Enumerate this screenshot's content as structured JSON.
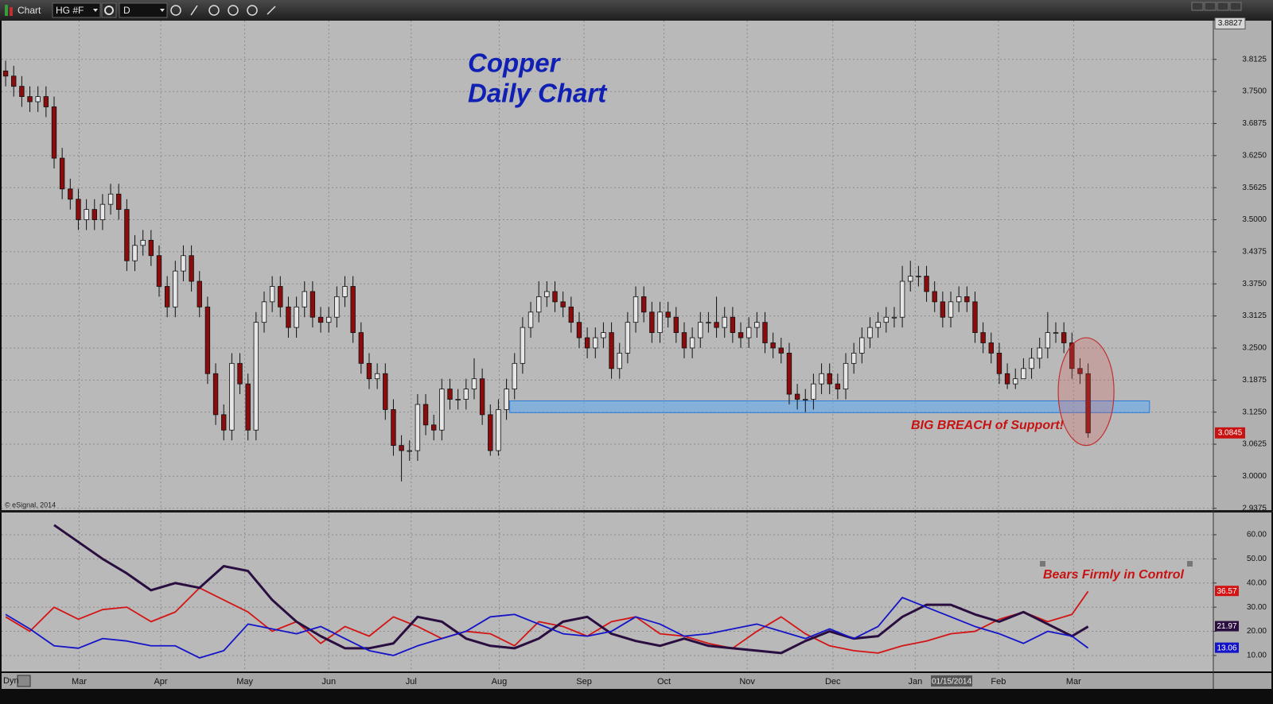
{
  "toolbar": {
    "app_label": "Chart",
    "symbol": "HG #F",
    "interval": "D"
  },
  "footer": {
    "mode": "Dyn"
  },
  "chart_data": [
    {
      "type": "candlestick",
      "title_lines": [
        "Copper",
        "Daily Chart"
      ],
      "annotations": [
        "BIG BREACH of Support!",
        "© eSignal, 2014"
      ],
      "ohlc": [
        [
          3.79,
          3.81,
          3.76,
          3.78
        ],
        [
          3.78,
          3.8,
          3.74,
          3.76
        ],
        [
          3.76,
          3.78,
          3.72,
          3.74
        ],
        [
          3.74,
          3.76,
          3.71,
          3.73
        ],
        [
          3.73,
          3.76,
          3.71,
          3.74
        ],
        [
          3.74,
          3.76,
          3.7,
          3.72
        ],
        [
          3.72,
          3.74,
          3.6,
          3.62
        ],
        [
          3.62,
          3.64,
          3.54,
          3.56
        ],
        [
          3.56,
          3.58,
          3.52,
          3.54
        ],
        [
          3.54,
          3.56,
          3.48,
          3.5
        ],
        [
          3.5,
          3.54,
          3.48,
          3.52
        ],
        [
          3.52,
          3.54,
          3.48,
          3.5
        ],
        [
          3.5,
          3.55,
          3.48,
          3.53
        ],
        [
          3.53,
          3.57,
          3.51,
          3.55
        ],
        [
          3.55,
          3.57,
          3.5,
          3.52
        ],
        [
          3.52,
          3.54,
          3.4,
          3.42
        ],
        [
          3.42,
          3.47,
          3.4,
          3.45
        ],
        [
          3.45,
          3.48,
          3.43,
          3.46
        ],
        [
          3.46,
          3.48,
          3.41,
          3.43
        ],
        [
          3.43,
          3.45,
          3.35,
          3.37
        ],
        [
          3.37,
          3.39,
          3.31,
          3.33
        ],
        [
          3.33,
          3.42,
          3.31,
          3.4
        ],
        [
          3.4,
          3.45,
          3.38,
          3.43
        ],
        [
          3.43,
          3.45,
          3.36,
          3.38
        ],
        [
          3.38,
          3.4,
          3.31,
          3.33
        ],
        [
          3.33,
          3.35,
          3.18,
          3.2
        ],
        [
          3.2,
          3.22,
          3.1,
          3.12
        ],
        [
          3.12,
          3.14,
          3.07,
          3.09
        ],
        [
          3.09,
          3.24,
          3.07,
          3.22
        ],
        [
          3.22,
          3.24,
          3.16,
          3.18
        ],
        [
          3.18,
          3.2,
          3.07,
          3.09
        ],
        [
          3.09,
          3.32,
          3.07,
          3.3
        ],
        [
          3.3,
          3.36,
          3.28,
          3.34
        ],
        [
          3.34,
          3.39,
          3.32,
          3.37
        ],
        [
          3.37,
          3.39,
          3.31,
          3.33
        ],
        [
          3.33,
          3.35,
          3.27,
          3.29
        ],
        [
          3.29,
          3.35,
          3.27,
          3.33
        ],
        [
          3.33,
          3.38,
          3.31,
          3.36
        ],
        [
          3.36,
          3.38,
          3.29,
          3.31
        ],
        [
          3.31,
          3.33,
          3.28,
          3.3
        ],
        [
          3.3,
          3.33,
          3.28,
          3.31
        ],
        [
          3.31,
          3.37,
          3.29,
          3.35
        ],
        [
          3.35,
          3.39,
          3.33,
          3.37
        ],
        [
          3.37,
          3.39,
          3.26,
          3.28
        ],
        [
          3.28,
          3.3,
          3.2,
          3.22
        ],
        [
          3.22,
          3.24,
          3.17,
          3.19
        ],
        [
          3.19,
          3.22,
          3.17,
          3.2
        ],
        [
          3.2,
          3.22,
          3.11,
          3.13
        ],
        [
          3.13,
          3.15,
          3.04,
          3.06
        ],
        [
          3.06,
          3.08,
          2.99,
          3.05
        ],
        [
          3.05,
          3.07,
          3.03,
          3.05
        ],
        [
          3.05,
          3.16,
          3.03,
          3.14
        ],
        [
          3.14,
          3.16,
          3.08,
          3.1
        ],
        [
          3.1,
          3.12,
          3.07,
          3.09
        ],
        [
          3.09,
          3.19,
          3.07,
          3.17
        ],
        [
          3.17,
          3.19,
          3.13,
          3.15
        ],
        [
          3.15,
          3.17,
          3.13,
          3.15
        ],
        [
          3.15,
          3.19,
          3.13,
          3.17
        ],
        [
          3.17,
          3.23,
          3.15,
          3.19
        ],
        [
          3.19,
          3.21,
          3.1,
          3.12
        ],
        [
          3.12,
          3.14,
          3.04,
          3.05
        ],
        [
          3.05,
          3.15,
          3.04,
          3.13
        ],
        [
          3.13,
          3.19,
          3.11,
          3.17
        ],
        [
          3.17,
          3.24,
          3.15,
          3.22
        ],
        [
          3.22,
          3.31,
          3.2,
          3.29
        ],
        [
          3.29,
          3.34,
          3.27,
          3.32
        ],
        [
          3.32,
          3.38,
          3.3,
          3.35
        ],
        [
          3.35,
          3.38,
          3.33,
          3.36
        ],
        [
          3.36,
          3.38,
          3.32,
          3.34
        ],
        [
          3.34,
          3.36,
          3.31,
          3.33
        ],
        [
          3.33,
          3.35,
          3.28,
          3.3
        ],
        [
          3.3,
          3.32,
          3.25,
          3.27
        ],
        [
          3.27,
          3.29,
          3.23,
          3.25
        ],
        [
          3.25,
          3.29,
          3.23,
          3.27
        ],
        [
          3.27,
          3.3,
          3.25,
          3.28
        ],
        [
          3.28,
          3.3,
          3.19,
          3.21
        ],
        [
          3.21,
          3.26,
          3.19,
          3.24
        ],
        [
          3.24,
          3.32,
          3.22,
          3.3
        ],
        [
          3.3,
          3.37,
          3.28,
          3.35
        ],
        [
          3.35,
          3.37,
          3.3,
          3.32
        ],
        [
          3.32,
          3.34,
          3.26,
          3.28
        ],
        [
          3.28,
          3.34,
          3.26,
          3.32
        ],
        [
          3.32,
          3.34,
          3.29,
          3.31
        ],
        [
          3.31,
          3.33,
          3.26,
          3.28
        ],
        [
          3.28,
          3.3,
          3.23,
          3.25
        ],
        [
          3.25,
          3.29,
          3.23,
          3.27
        ],
        [
          3.27,
          3.32,
          3.25,
          3.3
        ],
        [
          3.3,
          3.32,
          3.28,
          3.3
        ],
        [
          3.3,
          3.35,
          3.27,
          3.29
        ],
        [
          3.29,
          3.33,
          3.27,
          3.31
        ],
        [
          3.31,
          3.33,
          3.26,
          3.28
        ],
        [
          3.28,
          3.3,
          3.25,
          3.27
        ],
        [
          3.27,
          3.31,
          3.25,
          3.29
        ],
        [
          3.29,
          3.32,
          3.27,
          3.3
        ],
        [
          3.3,
          3.32,
          3.24,
          3.26
        ],
        [
          3.26,
          3.28,
          3.23,
          3.25
        ],
        [
          3.25,
          3.27,
          3.22,
          3.24
        ],
        [
          3.24,
          3.26,
          3.14,
          3.16
        ],
        [
          3.16,
          3.18,
          3.13,
          3.15
        ],
        [
          3.15,
          3.17,
          3.125,
          3.15
        ],
        [
          3.15,
          3.2,
          3.13,
          3.18
        ],
        [
          3.18,
          3.22,
          3.16,
          3.2
        ],
        [
          3.2,
          3.22,
          3.16,
          3.18
        ],
        [
          3.18,
          3.2,
          3.15,
          3.17
        ],
        [
          3.17,
          3.24,
          3.15,
          3.22
        ],
        [
          3.22,
          3.26,
          3.2,
          3.24
        ],
        [
          3.24,
          3.29,
          3.22,
          3.27
        ],
        [
          3.27,
          3.31,
          3.25,
          3.29
        ],
        [
          3.29,
          3.32,
          3.27,
          3.3
        ],
        [
          3.3,
          3.33,
          3.28,
          3.31
        ],
        [
          3.31,
          3.33,
          3.29,
          3.31
        ],
        [
          3.31,
          3.41,
          3.29,
          3.38
        ],
        [
          3.38,
          3.42,
          3.36,
          3.39
        ],
        [
          3.39,
          3.41,
          3.37,
          3.39
        ],
        [
          3.39,
          3.41,
          3.34,
          3.36
        ],
        [
          3.36,
          3.38,
          3.32,
          3.34
        ],
        [
          3.34,
          3.36,
          3.29,
          3.31
        ],
        [
          3.31,
          3.36,
          3.29,
          3.34
        ],
        [
          3.34,
          3.37,
          3.32,
          3.35
        ],
        [
          3.35,
          3.37,
          3.32,
          3.34
        ],
        [
          3.34,
          3.36,
          3.26,
          3.28
        ],
        [
          3.28,
          3.3,
          3.24,
          3.26
        ],
        [
          3.26,
          3.28,
          3.22,
          3.24
        ],
        [
          3.24,
          3.26,
          3.18,
          3.2
        ],
        [
          3.2,
          3.22,
          3.17,
          3.18
        ],
        [
          3.18,
          3.21,
          3.17,
          3.19
        ],
        [
          3.19,
          3.23,
          3.19,
          3.21
        ],
        [
          3.21,
          3.25,
          3.19,
          3.23
        ],
        [
          3.23,
          3.27,
          3.21,
          3.25
        ],
        [
          3.25,
          3.32,
          3.23,
          3.28
        ],
        [
          3.28,
          3.3,
          3.26,
          3.28
        ],
        [
          3.28,
          3.3,
          3.24,
          3.26
        ],
        [
          3.26,
          3.28,
          3.19,
          3.21
        ],
        [
          3.21,
          3.23,
          3.18,
          3.2
        ],
        [
          3.2,
          3.22,
          3.075,
          3.0845
        ]
      ],
      "up_color": "#e6e6e6",
      "down_color": "#8a0c0c",
      "xlim": [
        -0.5,
        149.5
      ],
      "xticks": [
        {
          "value": 9.1,
          "label": "Mar"
        },
        {
          "value": 19.2,
          "label": "Apr"
        },
        {
          "value": 29.6,
          "label": "May"
        },
        {
          "value": 40.0,
          "label": "Jun"
        },
        {
          "value": 50.2,
          "label": "Jul"
        },
        {
          "value": 61.1,
          "label": "Aug"
        },
        {
          "value": 71.6,
          "label": "Sep"
        },
        {
          "value": 81.5,
          "label": "Oct"
        },
        {
          "value": 91.8,
          "label": "Nov"
        },
        {
          "value": 102.4,
          "label": "Dec"
        },
        {
          "value": 112.6,
          "label": "Jan"
        },
        {
          "value": 122.9,
          "label": "Feb"
        },
        {
          "value": 132.2,
          "label": "Mar"
        }
      ],
      "cursor": {
        "value": 117.1,
        "label": "01/15/2014"
      },
      "ylim": [
        2.934,
        3.888
      ],
      "yticks": [
        2.9375,
        {
          "value": 3.0,
          "label": "3.0000"
        },
        3.0625,
        {
          "value": 3.125,
          "label": "3.1250"
        },
        3.1875,
        {
          "value": 3.25,
          "label": "3.2500"
        },
        3.3125,
        {
          "value": 3.375,
          "label": "3.3750"
        },
        3.4375,
        {
          "value": 3.5,
          "label": "3.5000"
        },
        3.5625,
        {
          "value": 3.625,
          "label": "3.6250"
        },
        3.6875,
        {
          "value": 3.75,
          "label": "3.7500"
        },
        3.8125
      ],
      "axis_high": 3.8827,
      "last_price": 3.0845,
      "support_zone": {
        "x": [
          62.4,
          141.6
        ],
        "y": [
          3.124,
          3.147
        ]
      },
      "highlight": {
        "x": [
          130.3,
          137.2
        ],
        "y": [
          3.06,
          3.27
        ]
      },
      "grid": true
    },
    {
      "type": "line",
      "annotations": [
        "Bears Firmly in Control"
      ],
      "xlim": [
        -0.5,
        149.5
      ],
      "x": [
        0,
        3,
        6,
        9,
        12,
        15,
        18,
        21,
        24,
        27,
        30,
        33,
        36,
        39,
        42,
        45,
        48,
        51,
        54,
        57,
        60,
        63,
        66,
        69,
        72,
        75,
        78,
        81,
        84,
        87,
        90,
        93,
        96,
        99,
        102,
        105,
        108,
        111,
        114,
        117,
        120,
        123,
        126,
        129,
        132,
        134
      ],
      "ylim": [
        3.4,
        69.2
      ],
      "yticks": [
        {
          "value": 10,
          "label": "10.00"
        },
        {
          "value": 20,
          "label": "20.00"
        },
        {
          "value": 30,
          "label": "30.00"
        },
        {
          "value": 40,
          "label": "40.00"
        },
        {
          "value": 50,
          "label": "50.00"
        },
        {
          "value": 60,
          "label": "60.00"
        }
      ],
      "series": [
        {
          "color": "#d41414",
          "values": [
            26,
            20,
            30,
            25,
            29,
            30,
            24,
            28,
            38,
            33,
            28,
            20,
            24,
            15,
            22,
            18,
            26,
            22,
            17,
            20,
            19,
            14,
            24,
            22,
            18,
            24,
            26,
            19,
            18,
            15,
            13,
            20,
            26,
            19,
            14,
            12,
            11,
            14,
            16,
            19,
            20,
            25,
            28,
            24,
            27,
            36.57
          ]
        },
        {
          "color": "#2a0e40",
          "values": [
            null,
            null,
            64,
            57,
            50,
            44,
            37,
            40,
            38,
            47,
            45,
            33,
            24,
            18,
            13,
            13,
            15,
            26,
            24,
            17,
            14,
            13,
            17,
            24,
            26,
            19,
            16,
            14,
            17,
            14,
            13,
            12,
            11,
            16,
            20,
            17,
            18,
            26,
            31,
            31,
            27,
            24,
            28,
            23,
            18,
            21.97
          ]
        },
        {
          "color": "#1414c8",
          "values": [
            27,
            21,
            14,
            13,
            17,
            16,
            14,
            14,
            9,
            12,
            23,
            21,
            19,
            22,
            17,
            12,
            10,
            14,
            17,
            20,
            26,
            27,
            23,
            19,
            18,
            20,
            26,
            23,
            18,
            19,
            21,
            23,
            20,
            17,
            21,
            17,
            22,
            34,
            30,
            26,
            22,
            19,
            15,
            20,
            18,
            13.06
          ]
        }
      ],
      "grid": true
    }
  ]
}
